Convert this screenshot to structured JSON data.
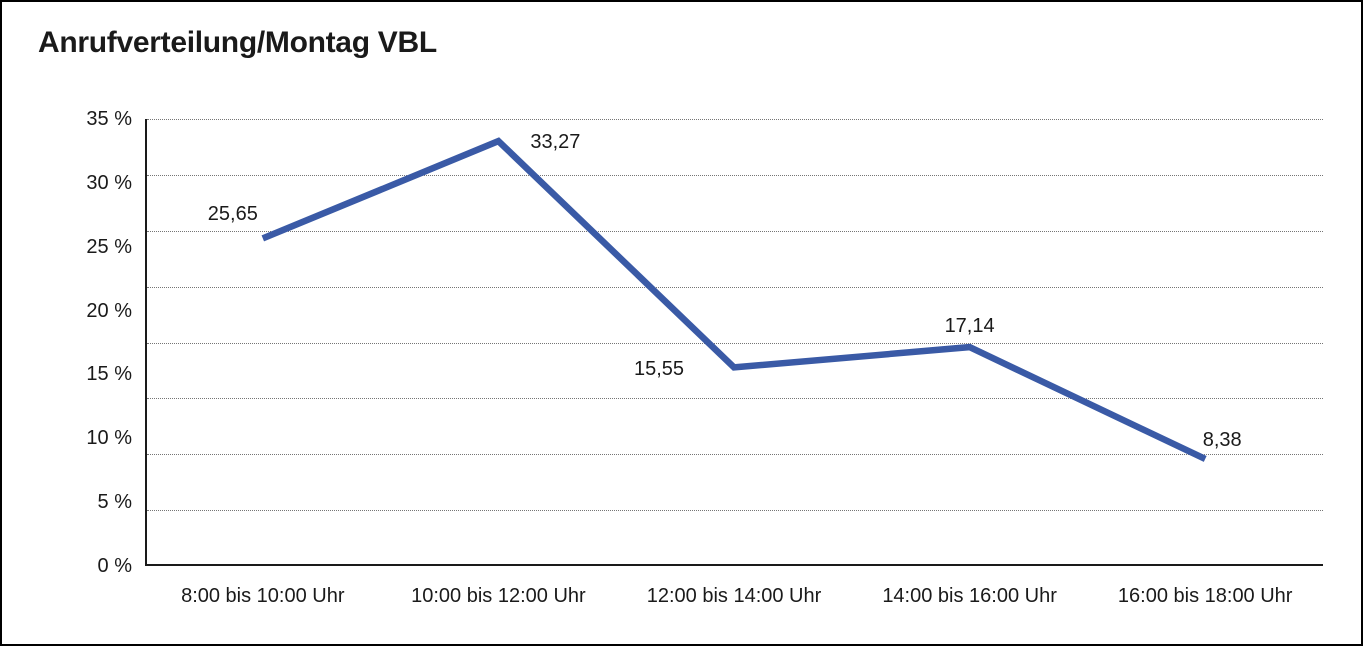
{
  "window": {
    "background": "#ffffff",
    "frame_border_color": "#000000"
  },
  "chart_data": {
    "type": "line",
    "title": "Anrufverteilung/Montag VBL",
    "categories": [
      "8:00 bis 10:00 Uhr",
      "10:00 bis 12:00 Uhr",
      "12:00 bis 14:00 Uhr",
      "14:00 bis 16:00 Uhr",
      "16:00 bis 18:00 Uhr"
    ],
    "values": [
      25.65,
      33.27,
      15.55,
      17.14,
      8.38
    ],
    "data_labels": [
      "25,65",
      "33,27",
      "15,55",
      "17,14",
      "8,38"
    ],
    "y_tick_labels": [
      "0 %",
      "5 %",
      "10 %",
      "15 %",
      "20 %",
      "25 %",
      "30 %",
      "35 %"
    ],
    "ylim": [
      0,
      35
    ],
    "y_tick_step": 5,
    "xlabel": "",
    "ylabel": "",
    "legend": "none",
    "grid": "horizontal-dotted",
    "grid_intervals": 8,
    "line_color": "#3A5AA6",
    "axis_color": "#1a1a1a",
    "grid_color": "#757575",
    "text_color": "#1a1a1a"
  }
}
